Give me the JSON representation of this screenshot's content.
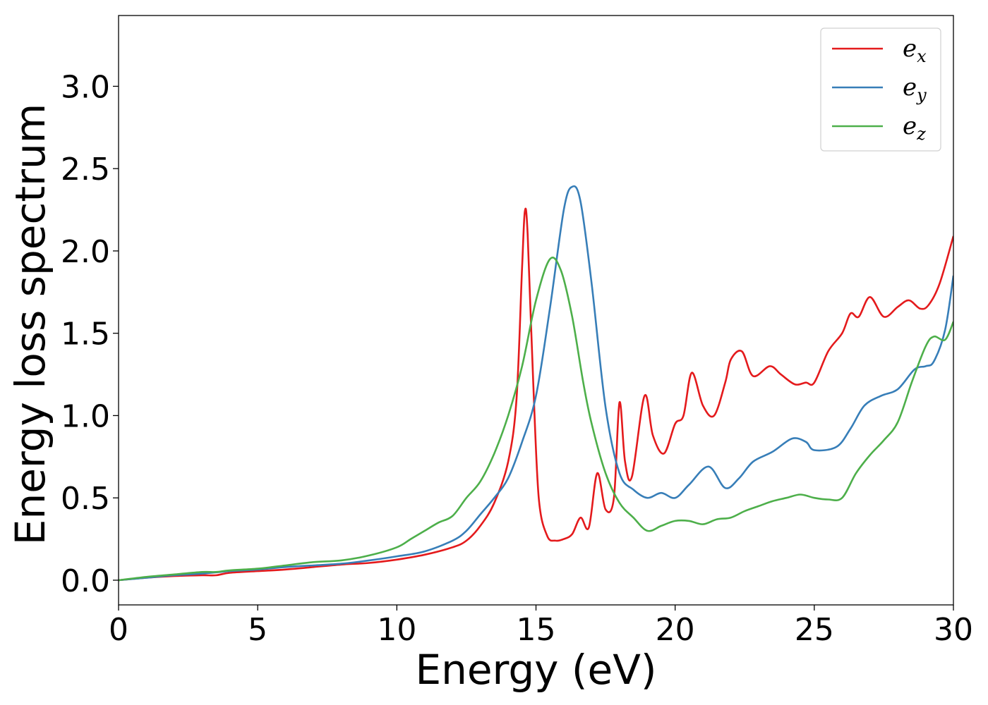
{
  "chart_data": {
    "type": "line",
    "xlabel": "Energy (eV)",
    "ylabel": "Energy loss spectrum",
    "xlim": [
      0,
      30
    ],
    "ylim": [
      -0.15,
      3.43
    ],
    "xticks": [
      0,
      5,
      10,
      15,
      20,
      25,
      30
    ],
    "yticks": [
      0.0,
      0.5,
      1.0,
      1.5,
      2.0,
      2.5,
      3.0
    ],
    "xtick_labels": [
      "0",
      "5",
      "10",
      "15",
      "20",
      "25",
      "30"
    ],
    "ytick_labels": [
      "0.0",
      "0.5",
      "1.0",
      "1.5",
      "2.0",
      "2.5",
      "3.0"
    ],
    "grid": false,
    "legend_position": "top-right",
    "series": [
      {
        "name": "e_x",
        "legend_base": "e",
        "legend_sub": "x",
        "color": "#e41a1c",
        "points": [
          [
            0,
            0
          ],
          [
            1,
            0.015
          ],
          [
            2,
            0.025
          ],
          [
            3,
            0.03
          ],
          [
            3.5,
            0.03
          ],
          [
            4,
            0.045
          ],
          [
            5,
            0.055
          ],
          [
            6,
            0.065
          ],
          [
            7,
            0.08
          ],
          [
            8,
            0.095
          ],
          [
            9,
            0.105
          ],
          [
            10,
            0.125
          ],
          [
            11,
            0.155
          ],
          [
            12,
            0.2
          ],
          [
            12.5,
            0.24
          ],
          [
            13,
            0.33
          ],
          [
            13.5,
            0.47
          ],
          [
            14,
            0.72
          ],
          [
            14.3,
            1.1
          ],
          [
            14.5,
            1.9
          ],
          [
            14.6,
            2.24
          ],
          [
            14.7,
            2.1
          ],
          [
            14.9,
            1.2
          ],
          [
            15.1,
            0.5
          ],
          [
            15.4,
            0.27
          ],
          [
            15.7,
            0.24
          ],
          [
            16,
            0.25
          ],
          [
            16.3,
            0.28
          ],
          [
            16.6,
            0.38
          ],
          [
            16.9,
            0.32
          ],
          [
            17.2,
            0.65
          ],
          [
            17.5,
            0.43
          ],
          [
            17.8,
            0.5
          ],
          [
            18.0,
            1.08
          ],
          [
            18.2,
            0.72
          ],
          [
            18.45,
            0.63
          ],
          [
            18.9,
            1.12
          ],
          [
            19.2,
            0.88
          ],
          [
            19.6,
            0.77
          ],
          [
            20.0,
            0.95
          ],
          [
            20.3,
            1.0
          ],
          [
            20.6,
            1.26
          ],
          [
            21.0,
            1.06
          ],
          [
            21.4,
            1.0
          ],
          [
            21.8,
            1.2
          ],
          [
            22.0,
            1.34
          ],
          [
            22.4,
            1.39
          ],
          [
            22.8,
            1.24
          ],
          [
            23.4,
            1.3
          ],
          [
            23.8,
            1.25
          ],
          [
            24.3,
            1.19
          ],
          [
            24.7,
            1.2
          ],
          [
            25.0,
            1.2
          ],
          [
            25.5,
            1.39
          ],
          [
            26.0,
            1.5
          ],
          [
            26.3,
            1.62
          ],
          [
            26.6,
            1.6
          ],
          [
            27.0,
            1.72
          ],
          [
            27.5,
            1.6
          ],
          [
            28.0,
            1.66
          ],
          [
            28.4,
            1.7
          ],
          [
            28.8,
            1.65
          ],
          [
            29.1,
            1.67
          ],
          [
            29.5,
            1.8
          ],
          [
            30,
            2.09
          ]
        ]
      },
      {
        "name": "e_y",
        "legend_base": "e",
        "legend_sub": "y",
        "color": "#377eb8",
        "points": [
          [
            0,
            0
          ],
          [
            1,
            0.015
          ],
          [
            2,
            0.03
          ],
          [
            3,
            0.04
          ],
          [
            4,
            0.055
          ],
          [
            5,
            0.065
          ],
          [
            6,
            0.08
          ],
          [
            7,
            0.09
          ],
          [
            8,
            0.1
          ],
          [
            9,
            0.12
          ],
          [
            10,
            0.145
          ],
          [
            11,
            0.175
          ],
          [
            12,
            0.24
          ],
          [
            12.5,
            0.3
          ],
          [
            13,
            0.4
          ],
          [
            13.5,
            0.5
          ],
          [
            14,
            0.62
          ],
          [
            14.5,
            0.84
          ],
          [
            15,
            1.12
          ],
          [
            15.5,
            1.65
          ],
          [
            16,
            2.25
          ],
          [
            16.3,
            2.39
          ],
          [
            16.6,
            2.3
          ],
          [
            17,
            1.8
          ],
          [
            17.5,
            1.05
          ],
          [
            18,
            0.65
          ],
          [
            18.5,
            0.55
          ],
          [
            19,
            0.5
          ],
          [
            19.5,
            0.53
          ],
          [
            20,
            0.5
          ],
          [
            20.5,
            0.58
          ],
          [
            21.2,
            0.69
          ],
          [
            21.8,
            0.56
          ],
          [
            22.3,
            0.62
          ],
          [
            22.8,
            0.72
          ],
          [
            23.5,
            0.78
          ],
          [
            24.2,
            0.86
          ],
          [
            24.7,
            0.84
          ],
          [
            25.0,
            0.79
          ],
          [
            25.8,
            0.81
          ],
          [
            26.3,
            0.92
          ],
          [
            26.8,
            1.06
          ],
          [
            27.4,
            1.12
          ],
          [
            28.0,
            1.16
          ],
          [
            28.6,
            1.28
          ],
          [
            29.0,
            1.3
          ],
          [
            29.3,
            1.33
          ],
          [
            29.7,
            1.52
          ],
          [
            30,
            1.85
          ]
        ]
      },
      {
        "name": "e_z",
        "legend_base": "e",
        "legend_sub": "z",
        "color": "#4daf4a",
        "points": [
          [
            0,
            0
          ],
          [
            1,
            0.02
          ],
          [
            2,
            0.035
          ],
          [
            3,
            0.05
          ],
          [
            3.5,
            0.05
          ],
          [
            4,
            0.06
          ],
          [
            5,
            0.07
          ],
          [
            6,
            0.09
          ],
          [
            7,
            0.11
          ],
          [
            8,
            0.12
          ],
          [
            9,
            0.15
          ],
          [
            10,
            0.2
          ],
          [
            10.5,
            0.25
          ],
          [
            11,
            0.3
          ],
          [
            11.5,
            0.35
          ],
          [
            12,
            0.39
          ],
          [
            12.5,
            0.5
          ],
          [
            13,
            0.6
          ],
          [
            13.5,
            0.77
          ],
          [
            14,
            1.0
          ],
          [
            14.5,
            1.3
          ],
          [
            15,
            1.7
          ],
          [
            15.5,
            1.95
          ],
          [
            15.9,
            1.88
          ],
          [
            16.3,
            1.6
          ],
          [
            16.7,
            1.2
          ],
          [
            17,
            0.95
          ],
          [
            17.5,
            0.65
          ],
          [
            18,
            0.47
          ],
          [
            18.5,
            0.38
          ],
          [
            19,
            0.3
          ],
          [
            19.5,
            0.33
          ],
          [
            20,
            0.36
          ],
          [
            20.5,
            0.36
          ],
          [
            21,
            0.34
          ],
          [
            21.5,
            0.37
          ],
          [
            22,
            0.38
          ],
          [
            22.5,
            0.42
          ],
          [
            23,
            0.45
          ],
          [
            23.5,
            0.48
          ],
          [
            24,
            0.5
          ],
          [
            24.5,
            0.52
          ],
          [
            25,
            0.5
          ],
          [
            25.5,
            0.49
          ],
          [
            26,
            0.5
          ],
          [
            26.5,
            0.65
          ],
          [
            27,
            0.76
          ],
          [
            27.5,
            0.85
          ],
          [
            28,
            0.96
          ],
          [
            28.5,
            1.2
          ],
          [
            29.0,
            1.42
          ],
          [
            29.3,
            1.48
          ],
          [
            29.7,
            1.46
          ],
          [
            30,
            1.57
          ]
        ]
      }
    ]
  }
}
